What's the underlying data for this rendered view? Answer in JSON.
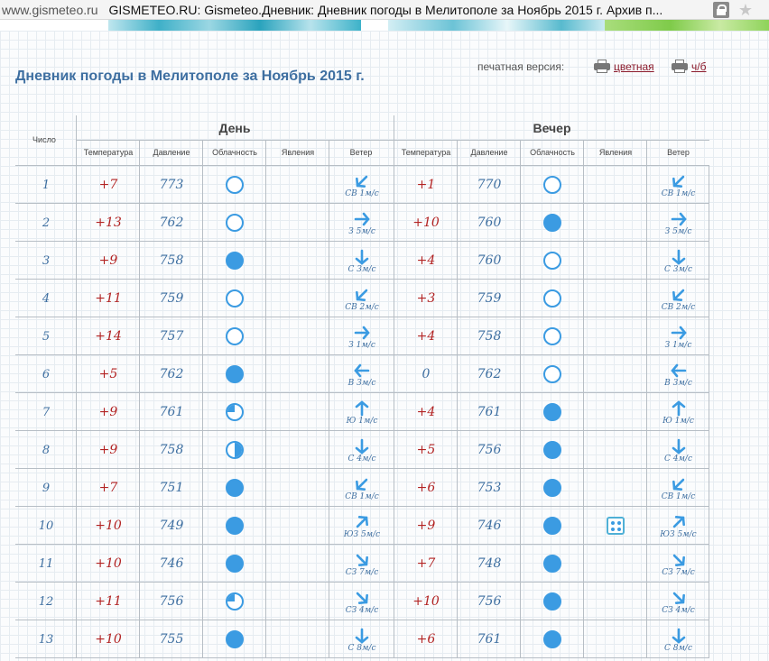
{
  "browser": {
    "domain": "www.gismeteo.ru",
    "title": "GISMETEO.RU: Gismeteo.Дневник: Дневник погоды в Мелитополе за Ноябрь 2015 г. Архив п..."
  },
  "page": {
    "title": "Дневник погоды в Мелитополе за Ноябрь 2015 г.",
    "print_label": "печатная версия:",
    "print_color": "цветная",
    "print_bw": "ч/б"
  },
  "table": {
    "day_label": "Число",
    "day_group": "День",
    "evening_group": "Вечер",
    "columns": [
      "Температура",
      "Давление",
      "Облачность",
      "Явления",
      "Ветер"
    ],
    "colors": {
      "accent": "#3b9be2",
      "temp": "#b22222",
      "text": "#3e6fa1"
    },
    "rows": [
      {
        "day": "1",
        "d": {
          "t": "+7",
          "p": "773",
          "c": "clear",
          "w": "СВ 1м/с",
          "dir": "ne"
        },
        "e": {
          "t": "+1",
          "p": "770",
          "c": "clear",
          "w": "СВ 1м/с",
          "dir": "ne"
        }
      },
      {
        "day": "2",
        "d": {
          "t": "+13",
          "p": "762",
          "c": "clear",
          "w": "З 5м/с",
          "dir": "w"
        },
        "e": {
          "t": "+10",
          "p": "760",
          "c": "overcast",
          "w": "З 5м/с",
          "dir": "w"
        }
      },
      {
        "day": "3",
        "d": {
          "t": "+9",
          "p": "758",
          "c": "overcast",
          "w": "С 3м/с",
          "dir": "n"
        },
        "e": {
          "t": "+4",
          "p": "760",
          "c": "clear",
          "w": "С 3м/с",
          "dir": "n"
        }
      },
      {
        "day": "4",
        "d": {
          "t": "+11",
          "p": "759",
          "c": "clear",
          "w": "СВ 2м/с",
          "dir": "ne"
        },
        "e": {
          "t": "+3",
          "p": "759",
          "c": "clear",
          "w": "СВ 2м/с",
          "dir": "ne"
        }
      },
      {
        "day": "5",
        "d": {
          "t": "+14",
          "p": "757",
          "c": "clear",
          "w": "З 1м/с",
          "dir": "w"
        },
        "e": {
          "t": "+4",
          "p": "758",
          "c": "clear",
          "w": "З 1м/с",
          "dir": "w"
        }
      },
      {
        "day": "6",
        "d": {
          "t": "+5",
          "p": "762",
          "c": "overcast",
          "w": "В 3м/с",
          "dir": "e"
        },
        "e": {
          "t": "0",
          "p": "762",
          "c": "clear",
          "w": "В 3м/с",
          "dir": "e"
        }
      },
      {
        "day": "7",
        "d": {
          "t": "+9",
          "p": "761",
          "c": "quarter",
          "w": "Ю 1м/с",
          "dir": "s"
        },
        "e": {
          "t": "+4",
          "p": "761",
          "c": "overcast",
          "w": "Ю 1м/с",
          "dir": "s"
        }
      },
      {
        "day": "8",
        "d": {
          "t": "+9",
          "p": "758",
          "c": "half",
          "w": "С 4м/с",
          "dir": "n"
        },
        "e": {
          "t": "+5",
          "p": "756",
          "c": "overcast",
          "w": "С 4м/с",
          "dir": "n"
        }
      },
      {
        "day": "9",
        "d": {
          "t": "+7",
          "p": "751",
          "c": "overcast",
          "w": "СВ 1м/с",
          "dir": "ne"
        },
        "e": {
          "t": "+6",
          "p": "753",
          "c": "overcast",
          "w": "СВ 1м/с",
          "dir": "ne"
        }
      },
      {
        "day": "10",
        "d": {
          "t": "+10",
          "p": "749",
          "c": "overcast",
          "w": "ЮЗ 5м/с",
          "dir": "sw"
        },
        "e": {
          "t": "+9",
          "p": "746",
          "c": "overcast",
          "w": "ЮЗ 5м/с",
          "dir": "sw",
          "ph": "snow"
        }
      },
      {
        "day": "11",
        "d": {
          "t": "+10",
          "p": "746",
          "c": "overcast",
          "w": "СЗ 7м/с",
          "dir": "nw"
        },
        "e": {
          "t": "+7",
          "p": "748",
          "c": "overcast",
          "w": "СЗ 7м/с",
          "dir": "nw"
        }
      },
      {
        "day": "12",
        "d": {
          "t": "+11",
          "p": "756",
          "c": "quarter",
          "w": "СЗ 4м/с",
          "dir": "nw"
        },
        "e": {
          "t": "+10",
          "p": "756",
          "c": "overcast",
          "w": "СЗ 4м/с",
          "dir": "nw"
        }
      },
      {
        "day": "13",
        "d": {
          "t": "+10",
          "p": "755",
          "c": "overcast",
          "w": "С 8м/с",
          "dir": "n"
        },
        "e": {
          "t": "+6",
          "p": "761",
          "c": "overcast",
          "w": "С 8м/с",
          "dir": "n"
        }
      }
    ]
  }
}
